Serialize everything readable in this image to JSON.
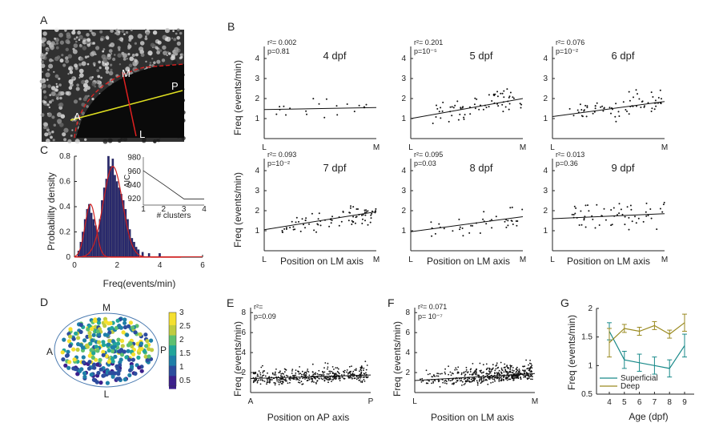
{
  "panels": {
    "A": {
      "letter": "A",
      "labels": {
        "M": "M",
        "P": "P",
        "A": "A",
        "L": "L"
      }
    },
    "B": {
      "letter": "B",
      "ylabel": "Freq (events/min)",
      "xlabel": "Position on LM axis",
      "x_left": "L",
      "x_right": "M",
      "yticks": [
        "1",
        "2",
        "3",
        "4"
      ],
      "subplots": [
        {
          "title": "4 dpf",
          "r2": "r²= 0.002",
          "p": "p=0.81",
          "fit": [
            1.45,
            1.55
          ]
        },
        {
          "title": "5 dpf",
          "r2": "r²= 0.201",
          "p": "p=10⁻⁵",
          "fit": [
            1.0,
            2.0
          ]
        },
        {
          "title": "6 dpf",
          "r2": "r²= 0.076",
          "p": "p=10⁻²",
          "fit": [
            1.1,
            1.85
          ]
        },
        {
          "title": "7 dpf",
          "r2": "r²= 0.093",
          "p": "p=10⁻²",
          "fit": [
            1.05,
            1.95
          ]
        },
        {
          "title": "8 dpf",
          "r2": "r²= 0.095",
          "p": "p=0.03",
          "fit": [
            0.95,
            1.7
          ]
        },
        {
          "title": "9 dpf",
          "r2": "r²= 0.013",
          "p": "p=0.36",
          "fit": [
            1.6,
            1.85
          ]
        }
      ]
    },
    "C": {
      "letter": "C",
      "ylabel": "Probability density",
      "xlabel": "Freq(events/min)",
      "xticks": [
        "0",
        "2",
        "4",
        "6"
      ],
      "yticks": [
        "0",
        "0.2",
        "0.4",
        "0.6",
        "0.8"
      ],
      "inset": {
        "ylabel": "AIC",
        "xlabel": "# clusters",
        "yticks": [
          "920",
          "940",
          "960",
          "980"
        ],
        "xticks": [
          "1",
          "2",
          "3",
          "4"
        ],
        "values": [
          [
            1,
            962
          ],
          [
            2,
            942
          ],
          [
            3,
            921
          ],
          [
            4,
            921
          ]
        ]
      }
    },
    "D": {
      "letter": "D",
      "labels": {
        "M": "M",
        "P": "P",
        "A": "A",
        "L": "L"
      },
      "colorbar_ticks": [
        "3",
        "2.5",
        "2",
        "1.5",
        "1",
        "0.5"
      ]
    },
    "E": {
      "letter": "E",
      "ylabel": "Freq (events/min)",
      "xlabel": "Position on AP axis",
      "x_left": "A",
      "x_right": "P",
      "r2": "r²=",
      "p": "p=0.09",
      "yticks": [
        "2",
        "4",
        "6",
        "8"
      ],
      "fit": [
        1.4,
        1.75
      ]
    },
    "F": {
      "letter": "F",
      "ylabel": "Freq (events/min)",
      "xlabel": "Position on LM axis",
      "x_left": "L",
      "x_right": "M",
      "r2": "r²= 0.071",
      "p": "p= 10⁻⁷",
      "yticks": [
        "2",
        "4",
        "6",
        "8"
      ],
      "fit": [
        1.2,
        1.9
      ]
    },
    "G": {
      "letter": "G",
      "ylabel": "Freq (events/min)",
      "xlabel": "Age (dpf)",
      "xticks": [
        "4",
        "5",
        "6",
        "7",
        "8",
        "9"
      ],
      "yticks": [
        "0.5",
        "1",
        "1.5",
        "2"
      ],
      "legend": [
        "Superficial",
        "Deep"
      ]
    }
  },
  "chart_data": [
    {
      "type": "line",
      "panel": "G",
      "xlabel": "Age (dpf)",
      "ylabel": "Freq (events/min)",
      "ylim": [
        0.5,
        2
      ],
      "x": [
        4,
        5,
        6,
        7,
        8,
        9
      ],
      "legend": "bottom-left",
      "series": [
        {
          "name": "Superficial",
          "color": "#1a8a8a",
          "values": [
            1.6,
            1.1,
            1.05,
            1.0,
            0.95,
            1.35
          ],
          "err": [
            0.15,
            0.15,
            0.15,
            0.15,
            0.15,
            0.2
          ]
        },
        {
          "name": "Deep",
          "color": "#9a8a20",
          "values": [
            1.4,
            1.65,
            1.6,
            1.7,
            1.55,
            1.75
          ],
          "err": [
            0.25,
            0.07,
            0.07,
            0.07,
            0.07,
            0.15
          ]
        }
      ]
    },
    {
      "type": "bar",
      "panel": "C",
      "xlabel": "Freq(events/min)",
      "ylabel": "Probability density",
      "xlim": [
        0,
        6
      ],
      "ylim": [
        0,
        0.8
      ],
      "bins": [
        0.2,
        0.3,
        0.4,
        0.5,
        0.6,
        0.7,
        0.8,
        0.9,
        1.0,
        1.1,
        1.2,
        1.3,
        1.4,
        1.5,
        1.6,
        1.7,
        1.8,
        1.9,
        2.0,
        2.1,
        2.2,
        2.3,
        2.4,
        2.5,
        2.6,
        2.7,
        2.8,
        2.9,
        3.0,
        3.2,
        3.5,
        4.0
      ],
      "values": [
        0.05,
        0.12,
        0.2,
        0.3,
        0.38,
        0.42,
        0.35,
        0.3,
        0.25,
        0.2,
        0.3,
        0.45,
        0.55,
        0.62,
        0.8,
        0.72,
        0.78,
        0.65,
        0.6,
        0.55,
        0.5,
        0.45,
        0.38,
        0.3,
        0.22,
        0.15,
        0.12,
        0.08,
        0.06,
        0.04,
        0.03,
        0.03
      ]
    }
  ]
}
